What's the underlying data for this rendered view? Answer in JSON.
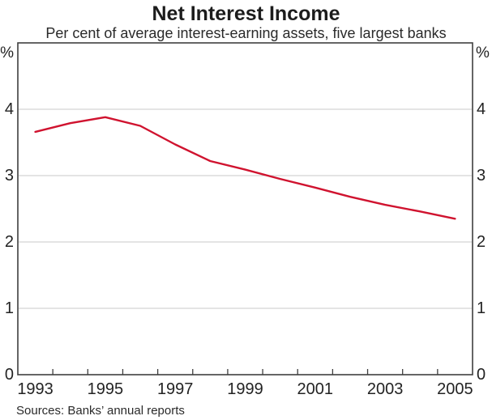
{
  "title": "Net Interest Income",
  "subtitle": "Per cent of average interest-earning assets, five largest banks",
  "source": "Sources: Banks’ annual reports",
  "axis": {
    "left_unit": "%",
    "right_unit": "%"
  },
  "colors": {
    "line": "#d0132f",
    "grid": "#c9c9c9",
    "frame": "#3f3f3f",
    "text": "#232323"
  },
  "chart_data": {
    "type": "line",
    "title": "Net Interest Income",
    "subtitle": "Per cent of average interest-earning assets, five largest banks",
    "xlabel": "",
    "ylabel": "%",
    "ylim": [
      0,
      5
    ],
    "grid": true,
    "x": [
      1993,
      1994,
      1995,
      1996,
      1997,
      1998,
      1999,
      2000,
      2001,
      2002,
      2003,
      2004,
      2005
    ],
    "series": [
      {
        "name": "Net interest income (% of average interest-earning assets)",
        "values": [
          3.66,
          3.79,
          3.88,
          3.75,
          3.47,
          3.22,
          3.09,
          2.95,
          2.82,
          2.68,
          2.56,
          2.46,
          2.35
        ]
      }
    ],
    "ygrid_values": [
      1,
      2,
      3,
      4
    ],
    "ytick_values": [
      4,
      3,
      2,
      1,
      0
    ],
    "ytick_labels": [
      "4",
      "3",
      "2",
      "1",
      "0"
    ],
    "xtick_years": [
      1993,
      1995,
      1997,
      1999,
      2001,
      2003,
      2005
    ],
    "xtick_labels": [
      "1993",
      "1995",
      "1997",
      "1999",
      "2001",
      "2003",
      "2005"
    ]
  }
}
